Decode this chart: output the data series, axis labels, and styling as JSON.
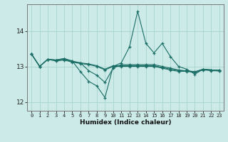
{
  "xlabel": "Humidex (Indice chaleur)",
  "bg_color": "#cceae8",
  "grid_color": "#a8d4d0",
  "line_color": "#1a6e65",
  "xlim": [
    -0.5,
    23.5
  ],
  "ylim": [
    11.75,
    14.75
  ],
  "yticks": [
    12,
    13,
    14
  ],
  "xticks": [
    0,
    1,
    2,
    3,
    4,
    5,
    6,
    7,
    8,
    9,
    10,
    11,
    12,
    13,
    14,
    15,
    16,
    17,
    18,
    19,
    20,
    21,
    22,
    23
  ],
  "series": [
    [
      13.35,
      13.0,
      13.2,
      13.15,
      13.18,
      13.12,
      13.08,
      13.05,
      13.0,
      12.9,
      13.0,
      13.0,
      13.0,
      13.0,
      13.0,
      13.0,
      12.95,
      12.9,
      12.86,
      12.86,
      12.83,
      12.9,
      12.88,
      12.87
    ],
    [
      13.35,
      13.0,
      13.2,
      13.17,
      13.2,
      13.13,
      13.1,
      13.07,
      13.02,
      12.92,
      13.02,
      13.02,
      13.02,
      13.02,
      13.02,
      13.02,
      12.97,
      12.92,
      12.88,
      12.88,
      12.85,
      12.92,
      12.9,
      12.89
    ],
    [
      13.35,
      13.0,
      13.2,
      13.18,
      13.22,
      13.15,
      13.1,
      12.88,
      12.75,
      12.55,
      12.95,
      13.05,
      13.05,
      13.05,
      13.05,
      13.05,
      13.0,
      12.95,
      12.9,
      12.87,
      12.84,
      12.92,
      12.9,
      12.89
    ],
    [
      13.35,
      13.0,
      13.2,
      13.18,
      13.22,
      13.15,
      12.85,
      12.58,
      12.45,
      12.12,
      13.0,
      13.1,
      13.55,
      14.55,
      13.65,
      13.38,
      13.65,
      13.28,
      13.0,
      12.92,
      12.78,
      12.92,
      12.9,
      12.88
    ]
  ]
}
